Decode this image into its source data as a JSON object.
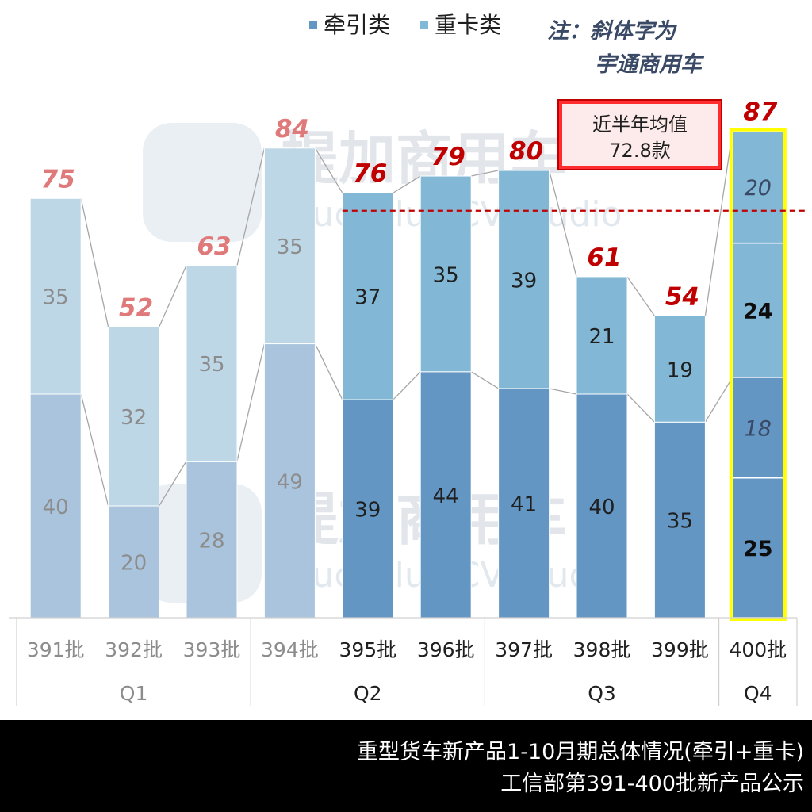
{
  "legend": {
    "items": [
      {
        "label": "牵引类",
        "color": "#6496c4"
      },
      {
        "label": "重卡类",
        "color": "#82b8d6"
      }
    ]
  },
  "note": {
    "line1": "注：斜体字为",
    "line2": "宇通商用车"
  },
  "average_box": {
    "line1": "近半年均值",
    "line2": "72.8款",
    "value": 72.8
  },
  "watermark": {
    "brand": "提加商用车",
    "sub": "TruckPlus CV studio"
  },
  "footer": {
    "line1": "重型货车新产品1-10月期总体情况(牵引+重卡)",
    "line2": "工信部第391-400批新产品公示"
  },
  "chart_data": {
    "type": "bar",
    "stacked": true,
    "categories": [
      "391批",
      "392批",
      "393批",
      "394批",
      "395批",
      "396批",
      "397批",
      "398批",
      "399批",
      "400批"
    ],
    "groups": [
      {
        "label": "Q1",
        "categories": [
          "391批",
          "392批",
          "393批"
        ]
      },
      {
        "label": "Q2",
        "categories": [
          "394批",
          "395批",
          "396批"
        ]
      },
      {
        "label": "Q3",
        "categories": [
          "397批",
          "398批",
          "399批"
        ]
      },
      {
        "label": "Q4",
        "categories": [
          "400批"
        ]
      }
    ],
    "series": [
      {
        "name": "牵引类",
        "values": [
          40,
          20,
          28,
          49,
          39,
          44,
          41,
          40,
          35,
          43
        ]
      },
      {
        "name": "重卡类",
        "values": [
          35,
          32,
          35,
          35,
          37,
          35,
          39,
          21,
          19,
          44
        ]
      }
    ],
    "totals": [
      "75",
      "52",
      "63",
      "84",
      "76",
      "79",
      "80",
      "61",
      "54",
      "87"
    ],
    "segment_labels": {
      "牵引类": [
        "40",
        "20",
        "28",
        "49",
        "39",
        "44",
        "41",
        "40",
        "35",
        "25",
        "18"
      ],
      "重卡类": [
        "35",
        "32",
        "35",
        "35",
        "37",
        "35",
        "39",
        "21",
        "19",
        "24",
        "20"
      ]
    },
    "q4_breakdown": [
      {
        "label": "25",
        "value": 25,
        "series": "牵引类",
        "italic": false
      },
      {
        "label": "18",
        "value": 18,
        "series": "牵引类",
        "italic": true
      },
      {
        "label": "24",
        "value": 24,
        "series": "重卡类",
        "italic": false
      },
      {
        "label": "20",
        "value": 20,
        "series": "重卡类",
        "italic": true
      }
    ],
    "highlighted_category": "400批",
    "highlight_color": "#ffff00",
    "faded_categories": [
      "391批",
      "392批",
      "393批",
      "394批"
    ],
    "average_line": 72.8,
    "average_line_color": "#c00000",
    "ylim": [
      0,
      90
    ],
    "grid": false,
    "legend_position": "top-center",
    "colors": {
      "tractor_active": "#6496c4",
      "heavy_active": "#82b8d6",
      "tractor_faded": "#a9c4dc",
      "heavy_faded": "#bed7e7",
      "total_label_active": "#c00000",
      "total_label_faded": "#e07a7a"
    }
  }
}
